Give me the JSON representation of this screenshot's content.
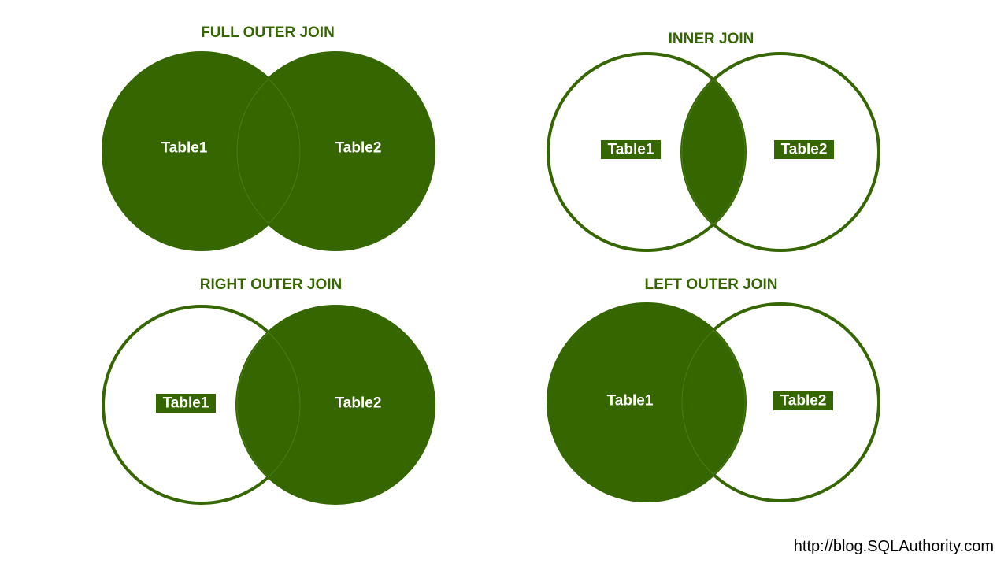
{
  "colors": {
    "fill": "#356600",
    "stroke": "#356600",
    "title": "#356600",
    "label_text": "#ffffff",
    "background": "#ffffff"
  },
  "diagrams": [
    {
      "title": "FULL OUTER JOIN",
      "left_label": "Table1",
      "right_label": "Table2",
      "shaded": [
        "left_only",
        "intersection",
        "right_only"
      ]
    },
    {
      "title": "INNER JOIN",
      "left_label": "Table1",
      "right_label": "Table2",
      "shaded": [
        "intersection"
      ]
    },
    {
      "title": "RIGHT OUTER JOIN",
      "left_label": "Table1",
      "right_label": "Table2",
      "shaded": [
        "intersection",
        "right_only"
      ]
    },
    {
      "title": "LEFT OUTER JOIN",
      "left_label": "Table1",
      "right_label": "Table2",
      "shaded": [
        "left_only",
        "intersection"
      ]
    }
  ],
  "credit": "http://blog.SQLAuthority.com"
}
